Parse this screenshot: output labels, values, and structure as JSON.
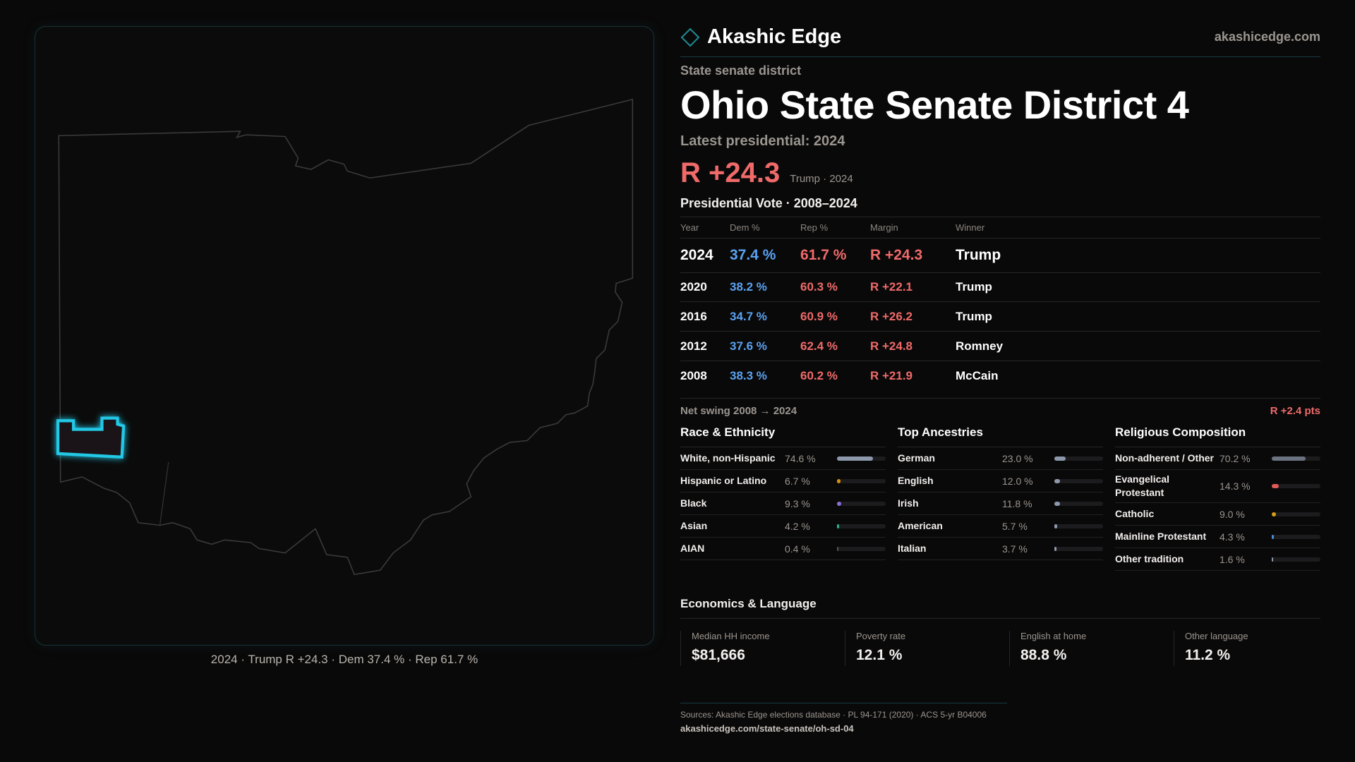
{
  "brand": {
    "name": "Akashic Edge",
    "site": "akashicedge.com",
    "accent": "#1e8a96"
  },
  "header": {
    "kicker": "State senate district",
    "title": "Ohio State Senate District 4",
    "latest_label": "Latest presidential: 2024",
    "margin": "R +24.3",
    "margin_sub": "Trump · 2024"
  },
  "map": {
    "caption": "2024 · Trump R +24.3 · Dem 37.4 % · Rep 61.7 %",
    "highlight_color": "#22c8e6"
  },
  "votes": {
    "title": "Presidential Vote · 2008–2024",
    "columns": [
      "Year",
      "Dem %",
      "Rep %",
      "Margin",
      "Winner"
    ],
    "rows": [
      {
        "year": "2024",
        "dem": "37.4 %",
        "rep": "61.7 %",
        "margin": "R +24.3",
        "winner": "Trump"
      },
      {
        "year": "2020",
        "dem": "38.2 %",
        "rep": "60.3 %",
        "margin": "R +22.1",
        "winner": "Trump"
      },
      {
        "year": "2016",
        "dem": "34.7 %",
        "rep": "60.9 %",
        "margin": "R +26.2",
        "winner": "Trump"
      },
      {
        "year": "2012",
        "dem": "37.6 %",
        "rep": "62.4 %",
        "margin": "R +24.8",
        "winner": "Romney"
      },
      {
        "year": "2008",
        "dem": "38.3 %",
        "rep": "60.2 %",
        "margin": "R +21.9",
        "winner": "McCain"
      }
    ],
    "swing_label": "Net swing 2008 → 2024",
    "swing_value": "R +2.4 pts",
    "dem_color": "#5aa2f2",
    "rep_color": "#f06a6a"
  },
  "race": {
    "title": "Race & Ethnicity",
    "items": [
      {
        "label": "White, non-Hispanic",
        "value": "74.6 %",
        "pct": 74.6,
        "color": "#8d99ab"
      },
      {
        "label": "Hispanic or Latino",
        "value": "6.7 %",
        "pct": 6.7,
        "color": "#d4900e"
      },
      {
        "label": "Black",
        "value": "9.3 %",
        "pct": 9.3,
        "color": "#8a6fd8"
      },
      {
        "label": "Asian",
        "value": "4.2 %",
        "pct": 4.2,
        "color": "#2ab08a"
      },
      {
        "label": "AIAN",
        "value": "0.4 %",
        "pct": 0.4,
        "color": "#555"
      }
    ]
  },
  "ancestry": {
    "title": "Top Ancestries",
    "items": [
      {
        "label": "German",
        "value": "23.0 %",
        "pct": 23.0,
        "color": "#8d99ab"
      },
      {
        "label": "English",
        "value": "12.0 %",
        "pct": 12.0,
        "color": "#8d99ab"
      },
      {
        "label": "Irish",
        "value": "11.8 %",
        "pct": 11.8,
        "color": "#8d99ab"
      },
      {
        "label": "American",
        "value": "5.7 %",
        "pct": 5.7,
        "color": "#8d99ab"
      },
      {
        "label": "Italian",
        "value": "3.7 %",
        "pct": 3.7,
        "color": "#8d99ab"
      }
    ]
  },
  "religion": {
    "title": "Religious Composition",
    "items": [
      {
        "label": "Non-adherent / Other",
        "value": "70.2 %",
        "pct": 70.2,
        "color": "#6b7280"
      },
      {
        "label": "Evangelical Protestant",
        "value": "14.3 %",
        "pct": 14.3,
        "color": "#e05a5a"
      },
      {
        "label": "Catholic",
        "value": "9.0 %",
        "pct": 9.0,
        "color": "#d4a017"
      },
      {
        "label": "Mainline Protestant",
        "value": "4.3 %",
        "pct": 4.3,
        "color": "#4a8ad8"
      },
      {
        "label": "Other tradition",
        "value": "1.6 %",
        "pct": 1.6,
        "color": "#8d99ab"
      }
    ]
  },
  "econ": {
    "title": "Economics & Language",
    "cards": [
      {
        "label": "Median HH income",
        "value": "$81,666"
      },
      {
        "label": "Poverty rate",
        "value": "12.1 %"
      },
      {
        "label": "English at home",
        "value": "88.8 %"
      },
      {
        "label": "Other language",
        "value": "11.2 %"
      }
    ]
  },
  "footer": {
    "sources": "Sources: Akashic Edge elections database · PL 94-171 (2020) · ACS 5-yr B04006",
    "url": "akashicedge.com/state-senate/oh-sd-04"
  }
}
